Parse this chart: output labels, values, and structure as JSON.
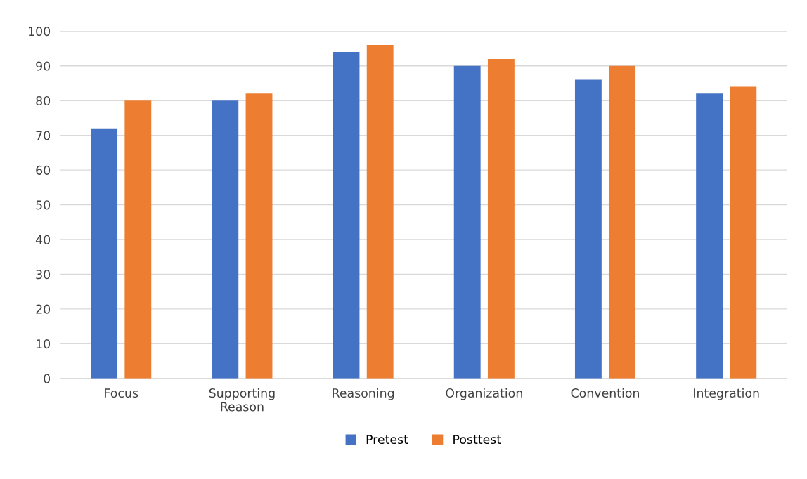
{
  "chart_data": {
    "type": "bar",
    "categories": [
      "Focus",
      "Supporting\nReason",
      "Reasoning",
      "Organization",
      "Convention",
      "Integration"
    ],
    "series": [
      {
        "name": "Pretest",
        "color": "#4472c4",
        "values": [
          72,
          80,
          94,
          90,
          86,
          82
        ]
      },
      {
        "name": "Posttest",
        "color": "#ed7d31",
        "values": [
          80,
          82,
          96,
          92,
          90,
          84
        ]
      }
    ],
    "ylim": [
      0,
      100
    ],
    "yticks": [
      0,
      10,
      20,
      30,
      40,
      50,
      60,
      70,
      80,
      90,
      100
    ],
    "grid": "y",
    "legend": "bottom"
  }
}
